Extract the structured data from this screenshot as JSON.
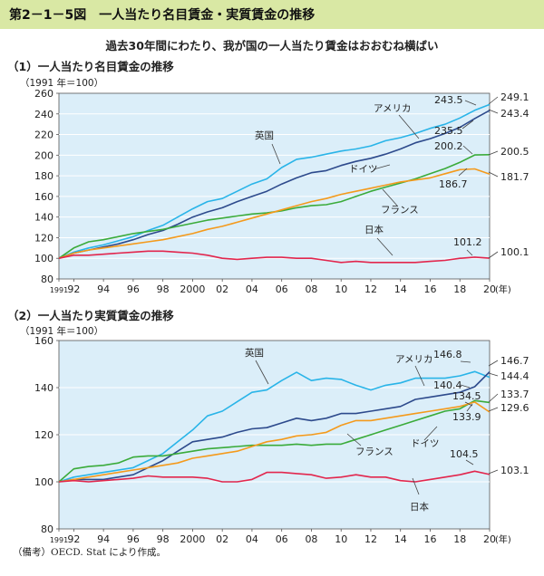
{
  "figure_title": "第2－1－5図　一人当たり名目賃金・実質賃金の推移",
  "subtitle": "過去30年間にわたり、我が国の一人当たり賃金はおおむね横ばい",
  "note": "（備考）OECD. Stat により作成。",
  "colors": {
    "header_bg": "#d9e8a4",
    "plot_bg": "#dbeef9",
    "usa": "#2d4a8c",
    "uk": "#29b4e8",
    "germany": "#3aab3a",
    "france": "#f49a1c",
    "japan": "#e2264d"
  },
  "chart_data": [
    {
      "type": "line",
      "title": "（1）一人当たり名目賃金の推移",
      "unit_note": "（1991 年＝100）",
      "xlim": [
        1991,
        2020
      ],
      "ylim": [
        80,
        260
      ],
      "yticks": [
        80,
        100,
        120,
        140,
        160,
        180,
        200,
        220,
        240,
        260
      ],
      "xticks": [
        1991,
        1992,
        1994,
        1996,
        1998,
        2000,
        2002,
        2004,
        2006,
        2008,
        2010,
        2012,
        2014,
        2016,
        2018,
        2020
      ],
      "xtick_labels": [
        "1991",
        "92",
        "94",
        "96",
        "98",
        "2000",
        "02",
        "04",
        "06",
        "08",
        "10",
        "12",
        "14",
        "16",
        "18",
        "20"
      ],
      "x_unit": "(年)",
      "x": [
        1991,
        1992,
        1993,
        1994,
        1995,
        1996,
        1997,
        1998,
        1999,
        2000,
        2001,
        2002,
        2003,
        2004,
        2005,
        2006,
        2007,
        2008,
        2009,
        2010,
        2011,
        2012,
        2013,
        2014,
        2015,
        2016,
        2017,
        2018,
        2019,
        2020
      ],
      "series": [
        {
          "name": "英国",
          "key": "uk",
          "values": [
            100,
            106,
            110,
            113,
            117,
            121,
            127,
            132,
            140,
            148,
            155,
            158,
            165,
            172,
            177,
            188,
            196,
            198,
            201,
            204,
            206,
            209,
            214,
            217,
            221,
            226,
            230,
            236,
            243.5,
            249.1
          ]
        },
        {
          "name": "アメリカ",
          "key": "usa",
          "values": [
            100,
            105,
            108,
            111,
            114,
            118,
            123,
            127,
            133,
            140,
            145,
            149,
            155,
            160,
            165,
            172,
            178,
            183,
            185,
            190,
            194,
            197,
            201,
            206,
            212,
            216,
            221,
            227,
            235.5,
            243.4
          ]
        },
        {
          "name": "ドイツ",
          "key": "germany",
          "values": [
            100,
            110,
            116,
            118,
            121,
            124,
            126,
            128,
            131,
            134,
            137,
            139,
            141,
            143,
            144,
            146,
            149,
            151,
            152,
            155,
            160,
            165,
            169,
            173,
            177,
            182,
            187,
            193,
            200.2,
            200.5
          ]
        },
        {
          "name": "フランス",
          "key": "france",
          "values": [
            100,
            105,
            108,
            110,
            112,
            114,
            116,
            118,
            121,
            124,
            128,
            131,
            135,
            139,
            143,
            147,
            151,
            155,
            158,
            162,
            165,
            168,
            171,
            174,
            176,
            178,
            182,
            186,
            186.7,
            181.7
          ]
        },
        {
          "name": "日本",
          "key": "japan",
          "values": [
            100,
            103,
            103,
            104,
            105,
            106,
            107,
            107,
            106,
            105,
            103,
            100,
            99,
            100,
            101,
            101,
            100,
            100,
            98,
            96,
            97,
            96,
            96,
            96,
            96,
            97,
            98,
            100,
            101.2,
            100.1
          ]
        }
      ],
      "labels": [
        {
          "text": "英国",
          "key": "uk"
        },
        {
          "text": "アメリカ",
          "key": "usa"
        },
        {
          "text": "ドイツ",
          "key": "germany"
        },
        {
          "text": "フランス",
          "key": "france"
        },
        {
          "text": "日本",
          "key": "japan"
        }
      ],
      "value_labels": [
        "243.5",
        "249.1",
        "243.4",
        "235.5",
        "200.2",
        "200.5",
        "186.7",
        "181.7",
        "101.2",
        "100.1"
      ]
    },
    {
      "type": "line",
      "title": "（2）一人当たり実質賃金の推移",
      "unit_note": "（1991 年＝100）",
      "xlim": [
        1991,
        2020
      ],
      "ylim": [
        80,
        160
      ],
      "yticks": [
        80,
        100,
        120,
        140,
        160
      ],
      "xticks": [
        1991,
        1992,
        1994,
        1996,
        1998,
        2000,
        2002,
        2004,
        2006,
        2008,
        2010,
        2012,
        2014,
        2016,
        2018,
        2020
      ],
      "xtick_labels": [
        "1991",
        "92",
        "94",
        "96",
        "98",
        "2000",
        "02",
        "04",
        "06",
        "08",
        "10",
        "12",
        "14",
        "16",
        "18",
        "20"
      ],
      "x_unit": "(年)",
      "x": [
        1991,
        1992,
        1993,
        1994,
        1995,
        1996,
        1997,
        1998,
        1999,
        2000,
        2001,
        2002,
        2003,
        2004,
        2005,
        2006,
        2007,
        2008,
        2009,
        2010,
        2011,
        2012,
        2013,
        2014,
        2015,
        2016,
        2017,
        2018,
        2019,
        2020
      ],
      "series": [
        {
          "name": "英国",
          "key": "uk",
          "values": [
            100,
            102,
            103,
            104,
            105,
            106,
            109,
            112,
            117,
            122,
            128,
            130,
            134,
            138,
            139,
            143,
            146.5,
            143,
            144,
            143.5,
            141,
            139,
            141,
            142,
            144,
            144,
            144,
            145,
            146.8,
            144.4
          ]
        },
        {
          "name": "アメリカ",
          "key": "usa",
          "values": [
            100,
            101,
            101,
            101,
            102,
            103,
            106,
            109,
            113,
            117,
            118,
            119,
            121,
            122.5,
            123,
            125,
            127,
            126,
            127,
            129,
            129,
            130,
            131,
            132,
            135,
            136,
            137,
            138,
            140.4,
            146.7
          ]
        },
        {
          "name": "ドイツ",
          "key": "germany",
          "values": [
            100,
            105.5,
            106.5,
            107,
            108,
            110.5,
            111,
            111,
            112,
            113,
            114,
            114.5,
            115,
            115.5,
            115.5,
            115.5,
            116,
            115.5,
            116,
            116,
            118,
            120,
            122,
            124,
            126,
            128,
            130,
            131,
            134.5,
            133.7
          ]
        },
        {
          "name": "フランス",
          "key": "france",
          "values": [
            100,
            101,
            102,
            103,
            104,
            105,
            106,
            107,
            108,
            110,
            111,
            112,
            113,
            115,
            117,
            118,
            119.5,
            120,
            121,
            124,
            126,
            126,
            127,
            128,
            129,
            130,
            131,
            132,
            133.9,
            129.6
          ]
        },
        {
          "name": "日本",
          "key": "japan",
          "values": [
            100,
            100.5,
            100,
            100.5,
            101,
            101.5,
            102.5,
            102,
            102,
            102,
            101.5,
            100,
            100,
            101,
            104,
            104,
            103.5,
            103,
            101.5,
            102,
            103,
            102,
            102,
            100.5,
            100,
            101,
            102,
            103,
            104.5,
            103.1
          ]
        }
      ],
      "labels": [
        {
          "text": "英国",
          "key": "uk"
        },
        {
          "text": "アメリカ",
          "key": "usa"
        },
        {
          "text": "ドイツ",
          "key": "germany"
        },
        {
          "text": "フランス",
          "key": "france"
        },
        {
          "text": "日本",
          "key": "japan"
        }
      ],
      "value_labels": [
        "146.7",
        "146.8",
        "144.4",
        "140.4",
        "134.5",
        "133.7",
        "133.9",
        "129.6",
        "104.5",
        "103.1"
      ]
    }
  ]
}
